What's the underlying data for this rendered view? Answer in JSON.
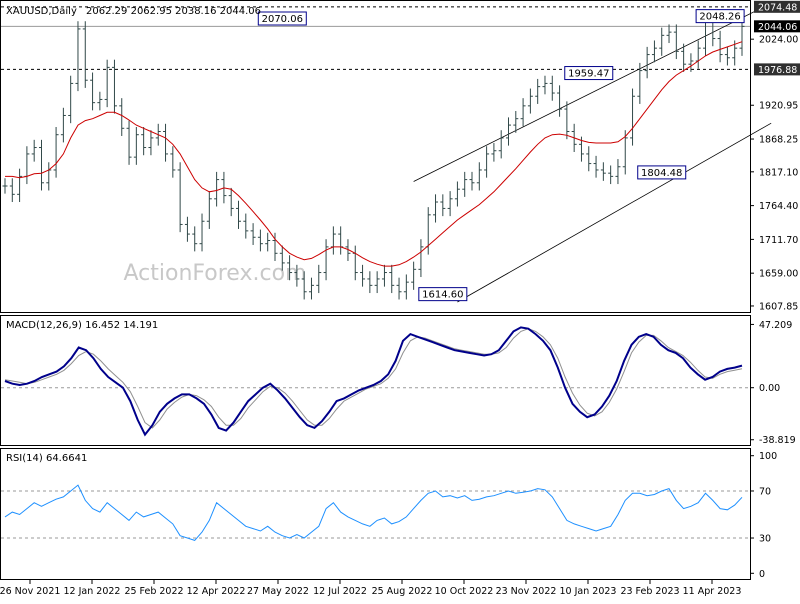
{
  "chart_data": {
    "type": "line",
    "symbol_title": "XAUUSD,Daily",
    "ohlc_text": "2062.29 2062.95 2038.16 2044.06",
    "watermark": "ActionForex.com",
    "x_labels": [
      "26 Nov 2021",
      "12 Jan 2022",
      "25 Feb 2022",
      "12 Apr 2022",
      "27 May 2022",
      "12 Jul 2022",
      "25 Aug 2022",
      "10 Oct 2022",
      "23 Nov 2022",
      "10 Jan 2023",
      "23 Feb 2023",
      "11 Apr 2023"
    ],
    "price_panel": {
      "y_ticks": [
        "2024.00",
        "1920.95",
        "1868.25",
        "1817.10",
        "1764.40",
        "1711.70",
        "1659.00",
        "1607.85"
      ],
      "y_tick_values": [
        2024.0,
        1920.95,
        1868.25,
        1817.1,
        1764.4,
        1711.7,
        1659.0,
        1607.85
      ],
      "ylim": [
        1600,
        2082
      ],
      "level_tags": [
        {
          "label": "2074.48",
          "value": 2074.48,
          "style": "dark",
          "dashed": true
        },
        {
          "label": "2044.06",
          "value": 2044.06,
          "style": "black",
          "dashed": false
        },
        {
          "label": "1976.88",
          "value": 1976.88,
          "style": "dark",
          "dashed": true
        }
      ],
      "annotations": [
        {
          "label": "2070.06",
          "x": 38,
          "y": 2070.06
        },
        {
          "label": "2048.26",
          "x": 98,
          "y": 2048.26
        },
        {
          "label": "1959.47",
          "x": 80,
          "y": 1959.47
        },
        {
          "label": "1804.48",
          "x": 90,
          "y": 1804.48
        },
        {
          "label": "1614.60",
          "x": 60,
          "y": 1614.6
        }
      ],
      "channel_upper": [
        [
          56,
          1802
        ],
        [
          105,
          2080
        ]
      ],
      "channel_lower": [
        [
          62,
          1614
        ],
        [
          105,
          1893
        ]
      ],
      "price_color": "#304848",
      "ma_color": "#cc0000",
      "price_series": [
        1795,
        1782,
        1810,
        1845,
        1855,
        1800,
        1820,
        1875,
        1905,
        1955,
        2040,
        1960,
        1925,
        1930,
        1980,
        1920,
        1885,
        1840,
        1875,
        1855,
        1870,
        1880,
        1845,
        1820,
        1735,
        1720,
        1705,
        1740,
        1775,
        1805,
        1780,
        1760,
        1740,
        1725,
        1715,
        1705,
        1710,
        1690,
        1675,
        1660,
        1650,
        1630,
        1640,
        1660,
        1700,
        1720,
        1700,
        1690,
        1660,
        1650,
        1640,
        1650,
        1660,
        1640,
        1630,
        1645,
        1665,
        1700,
        1750,
        1770,
        1760,
        1775,
        1790,
        1805,
        1800,
        1820,
        1845,
        1850,
        1870,
        1890,
        1900,
        1920,
        1935,
        1950,
        1955,
        1940,
        1915,
        1880,
        1860,
        1845,
        1830,
        1820,
        1815,
        1810,
        1825,
        1870,
        1935,
        1975,
        2000,
        2010,
        2030,
        2035,
        2005,
        1985,
        1990,
        2010,
        2050,
        2025,
        2000,
        1995,
        2010,
        2044
      ],
      "ma_series": [
        1810,
        1810,
        1808,
        1810,
        1814,
        1815,
        1820,
        1830,
        1845,
        1870,
        1890,
        1897,
        1900,
        1905,
        1910,
        1910,
        1905,
        1898,
        1890,
        1885,
        1880,
        1875,
        1870,
        1860,
        1845,
        1825,
        1805,
        1792,
        1786,
        1788,
        1792,
        1790,
        1780,
        1768,
        1755,
        1742,
        1728,
        1712,
        1700,
        1690,
        1684,
        1680,
        1682,
        1688,
        1695,
        1700,
        1700,
        1696,
        1690,
        1683,
        1677,
        1673,
        1670,
        1670,
        1672,
        1677,
        1684,
        1692,
        1702,
        1712,
        1722,
        1732,
        1742,
        1750,
        1758,
        1766,
        1776,
        1786,
        1798,
        1810,
        1822,
        1835,
        1848,
        1860,
        1870,
        1875,
        1876,
        1874,
        1870,
        1866,
        1863,
        1862,
        1862,
        1862,
        1864,
        1872,
        1885,
        1900,
        1915,
        1930,
        1945,
        1958,
        1968,
        1975,
        1982,
        1990,
        1998,
        2004,
        2008,
        2012,
        2016,
        2020
      ]
    },
    "macd_panel": {
      "label": "MACD(12,26,9) 16.452 14.191",
      "y_ticks": [
        "47.209",
        "0.00",
        "-38.819"
      ],
      "y_tick_values": [
        47.209,
        0.0,
        -38.819
      ],
      "ylim": [
        -42,
        52
      ],
      "macd_color": "#00008b",
      "signal_color": "#909090",
      "macd_series": [
        5,
        3,
        2,
        3,
        5,
        8,
        10,
        12,
        16,
        22,
        30,
        28,
        22,
        14,
        8,
        4,
        0,
        -10,
        -24,
        -35,
        -28,
        -18,
        -12,
        -8,
        -5,
        -5,
        -8,
        -12,
        -20,
        -30,
        -32,
        -26,
        -18,
        -10,
        -5,
        0,
        3,
        -2,
        -8,
        -15,
        -22,
        -28,
        -30,
        -25,
        -18,
        -10,
        -8,
        -5,
        -2,
        0,
        2,
        5,
        10,
        20,
        35,
        40,
        38,
        36,
        34,
        32,
        30,
        28,
        27,
        26,
        25,
        24,
        25,
        28,
        35,
        42,
        45,
        44,
        40,
        35,
        28,
        15,
        0,
        -12,
        -18,
        -22,
        -20,
        -14,
        -6,
        5,
        20,
        32,
        38,
        40,
        38,
        32,
        28,
        26,
        22,
        15,
        10,
        6,
        8,
        12,
        14,
        15,
        16.452
      ],
      "signal_series": [
        6,
        5,
        4,
        3,
        4,
        6,
        8,
        10,
        13,
        18,
        24,
        27,
        25,
        20,
        14,
        9,
        4,
        -3,
        -14,
        -26,
        -30,
        -24,
        -16,
        -11,
        -7,
        -5,
        -6,
        -9,
        -14,
        -22,
        -28,
        -28,
        -23,
        -15,
        -9,
        -3,
        1,
        0,
        -4,
        -10,
        -17,
        -24,
        -28,
        -28,
        -23,
        -16,
        -10,
        -7,
        -4,
        -1,
        1,
        3,
        7,
        14,
        26,
        35,
        38,
        37,
        35,
        33,
        31,
        29,
        28,
        27,
        26,
        25,
        25,
        26,
        30,
        37,
        42,
        44,
        42,
        38,
        32,
        22,
        8,
        -4,
        -13,
        -19,
        -21,
        -18,
        -11,
        -1,
        12,
        26,
        34,
        39,
        39,
        35,
        30,
        27,
        24,
        19,
        13,
        8,
        7,
        10,
        12,
        13,
        14.191
      ]
    },
    "rsi_panel": {
      "label": "RSI(14) 64.6641",
      "y_ticks": [
        "100",
        "70",
        "30",
        "0"
      ],
      "y_tick_values": [
        100,
        70,
        30,
        0
      ],
      "ylim": [
        -4,
        104
      ],
      "levels": [
        70,
        30
      ],
      "rsi_color": "#1e90ff",
      "rsi_series": [
        48,
        52,
        50,
        55,
        60,
        57,
        60,
        63,
        65,
        70,
        75,
        62,
        55,
        52,
        60,
        55,
        50,
        45,
        52,
        48,
        50,
        52,
        47,
        42,
        32,
        30,
        28,
        35,
        45,
        60,
        55,
        50,
        45,
        40,
        38,
        36,
        40,
        35,
        32,
        30,
        33,
        30,
        35,
        40,
        55,
        60,
        52,
        48,
        45,
        42,
        40,
        45,
        47,
        42,
        44,
        48,
        55,
        62,
        68,
        70,
        65,
        66,
        64,
        66,
        62,
        63,
        65,
        66,
        68,
        70,
        68,
        69,
        70,
        72,
        71,
        65,
        55,
        45,
        42,
        40,
        38,
        36,
        38,
        40,
        50,
        62,
        68,
        68,
        66,
        67,
        70,
        72,
        62,
        55,
        57,
        60,
        68,
        62,
        55,
        54,
        58,
        64.6641
      ]
    }
  }
}
